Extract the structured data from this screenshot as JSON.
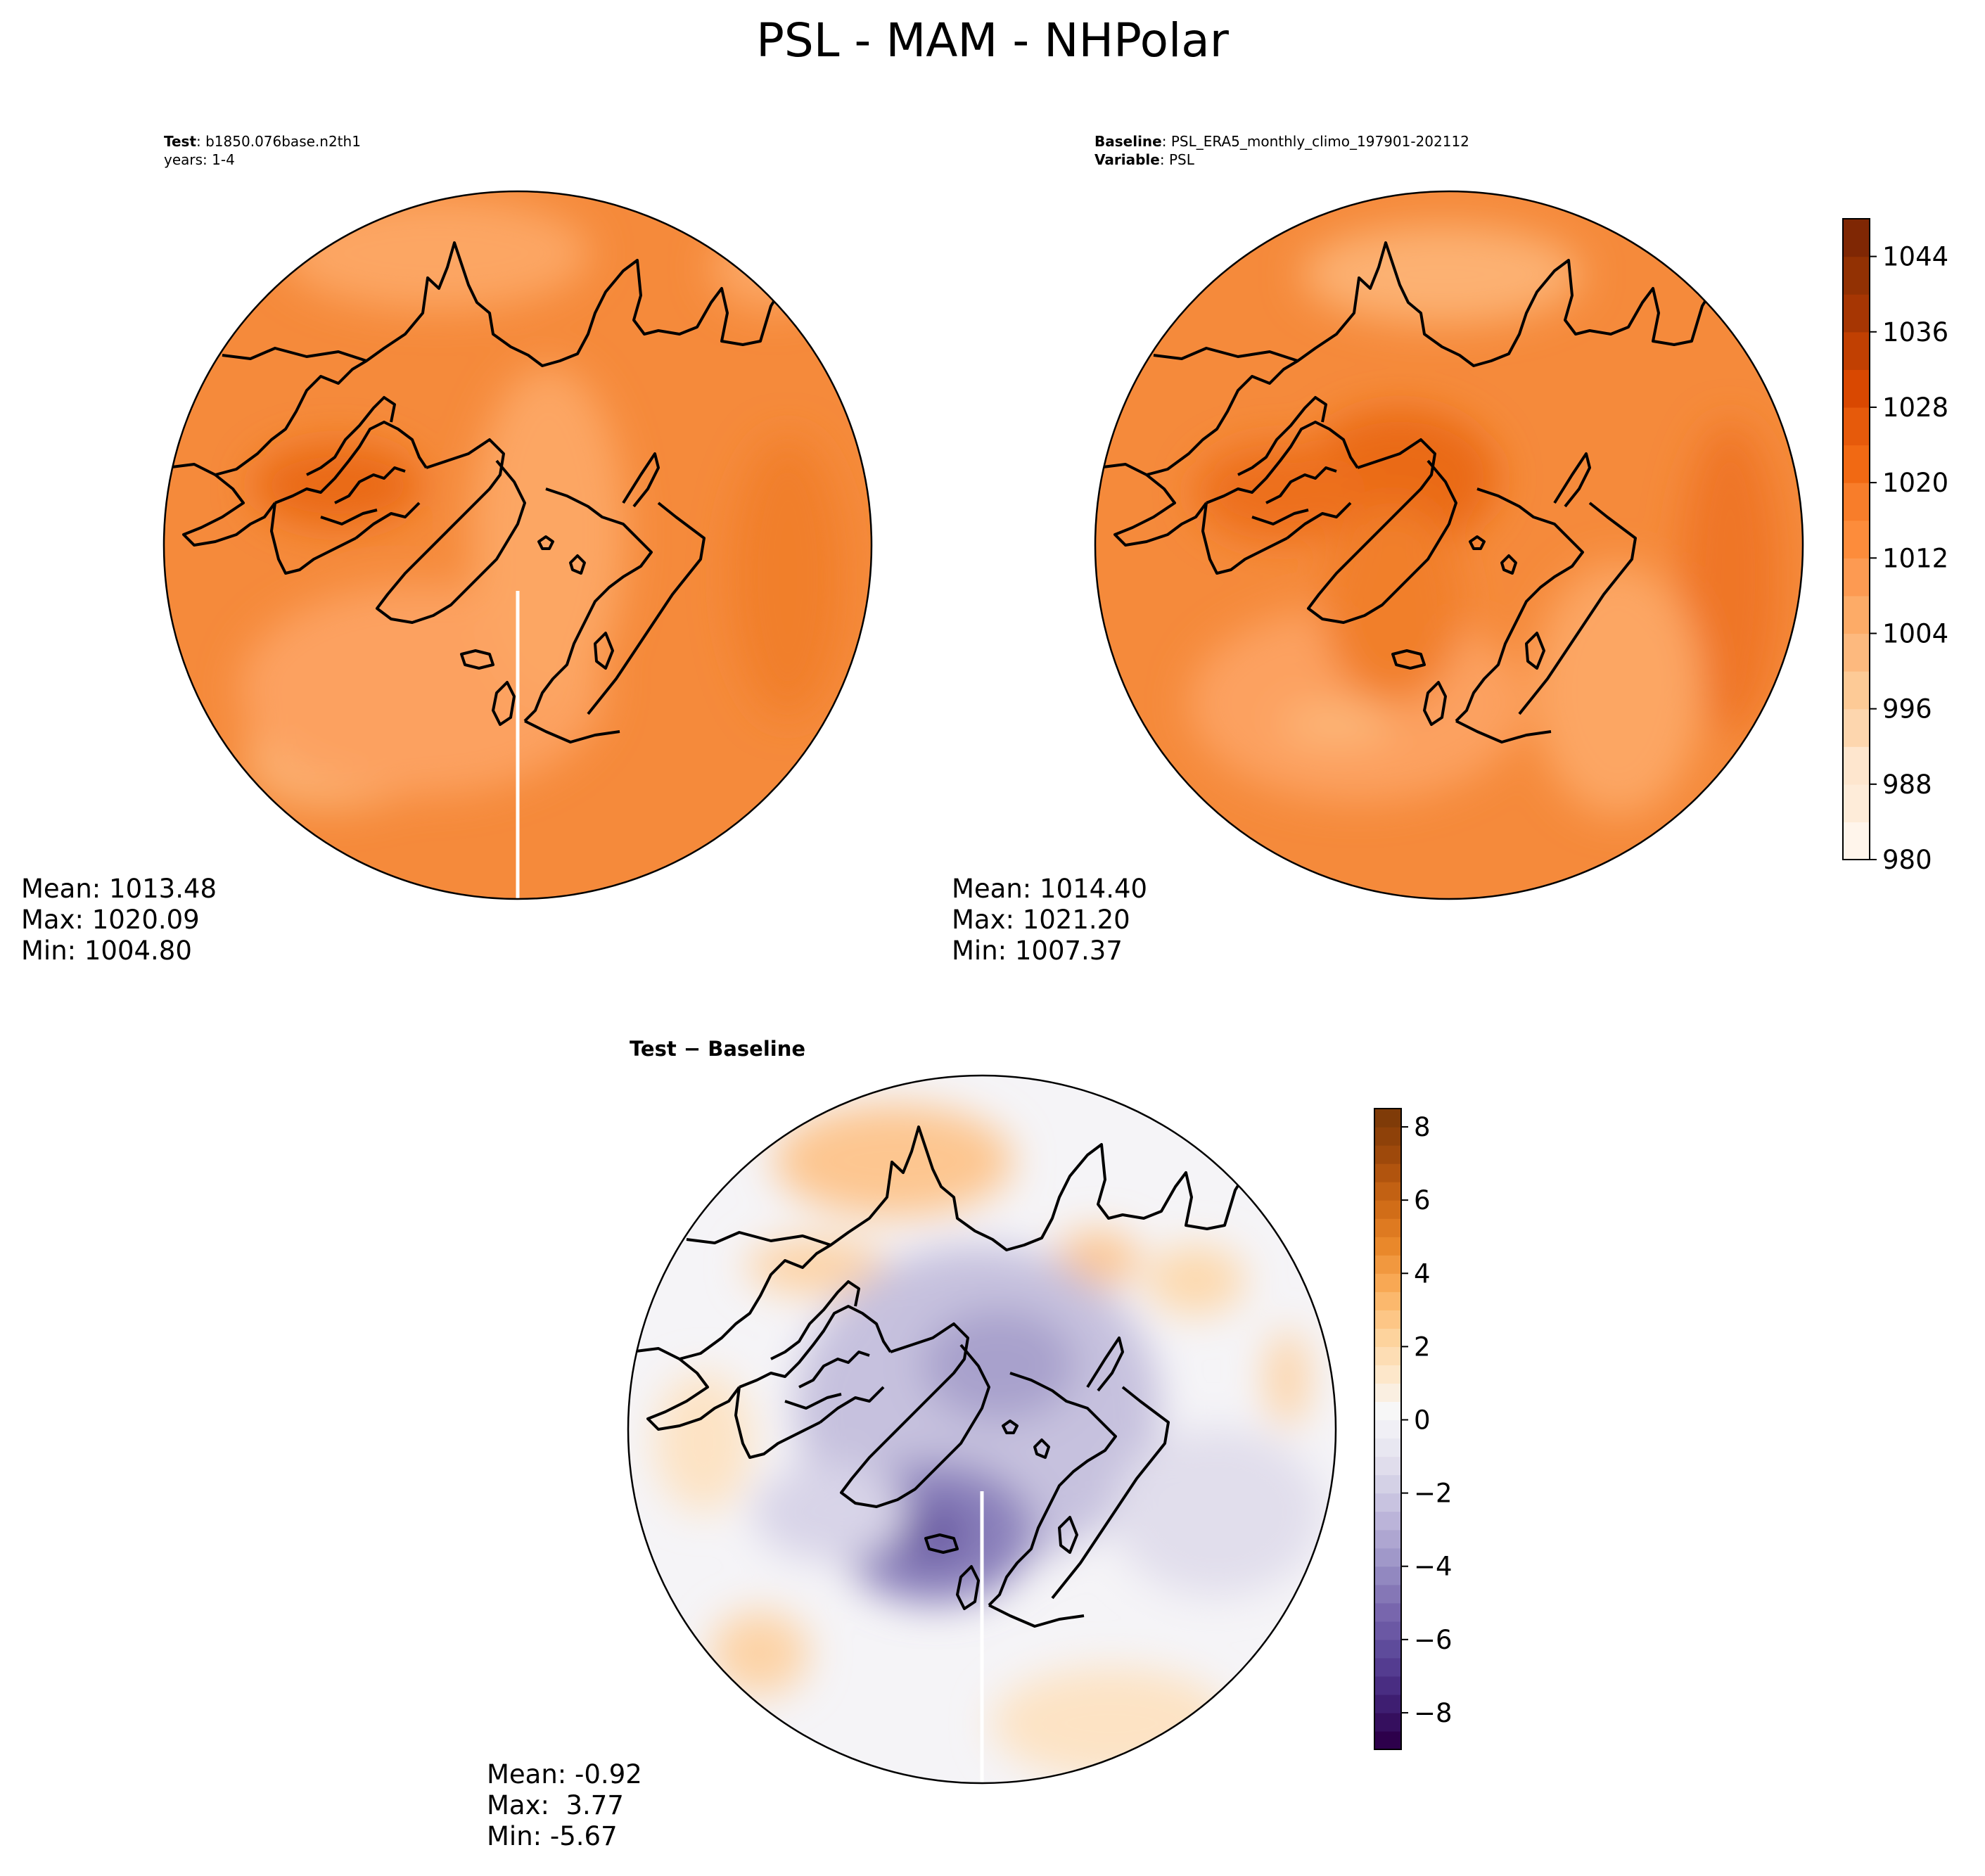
{
  "title": "PSL - MAM - NHPolar",
  "panels": {
    "test": {
      "label_bold": "Test",
      "label_value": ": b1850.076base.n2th1",
      "line2": "years: 1-4",
      "stats": {
        "mean": "Mean: 1013.48",
        "max": "Max: 1020.09",
        "min": "Min: 1004.80"
      }
    },
    "baseline": {
      "label_bold": "Baseline",
      "label_value": ": PSL_ERA5_monthly_climo_197901-202112",
      "line2_bold": "Variable",
      "line2_value": ": PSL",
      "stats": {
        "mean": "Mean: 1014.40",
        "max": "Max: 1021.20",
        "min": "Min: 1007.37"
      }
    },
    "diff": {
      "title": "Test − Baseline",
      "stats": {
        "mean": "Mean: -0.92",
        "max": "Max:  3.77",
        "min": "Min: -5.67"
      }
    }
  },
  "chart_data": [
    {
      "type": "heatmap",
      "name": "Test",
      "projection": "north-polar-stereographic",
      "variable": "PSL",
      "colormap": "Oranges",
      "stats": {
        "mean": 1013.48,
        "max": 1020.09,
        "min": 1004.8
      }
    },
    {
      "type": "heatmap",
      "name": "Baseline",
      "projection": "north-polar-stereographic",
      "variable": "PSL",
      "colormap": "Oranges",
      "stats": {
        "mean": 1014.4,
        "max": 1021.2,
        "min": 1007.37
      },
      "colorbar": {
        "ticks": [
          "1044",
          "1036",
          "1028",
          "1020",
          "1012",
          "1004",
          "996",
          "988",
          "980"
        ],
        "range": [
          980,
          1048
        ],
        "levels": 17
      }
    },
    {
      "type": "heatmap",
      "name": "Test − Baseline",
      "projection": "north-polar-stereographic",
      "colormap": "PuOr_r",
      "stats": {
        "mean": -0.92,
        "max": 3.77,
        "min": -5.67
      },
      "colorbar": {
        "ticks": [
          "8",
          "6",
          "4",
          "2",
          "0",
          "−2",
          "−4",
          "−6",
          "−8"
        ],
        "range": [
          -9,
          8.5
        ],
        "levels": 35
      }
    }
  ],
  "colors": {
    "oranges": [
      "#fff5eb",
      "#feecd9",
      "#fee6ce",
      "#fdd6ae",
      "#fdca96",
      "#fdb97e",
      "#fdab67",
      "#fd9a52",
      "#fd8c3b",
      "#f87d2a",
      "#f16913",
      "#e65a0b",
      "#d94801",
      "#c14002",
      "#a63603",
      "#923103",
      "#7f2704"
    ],
    "diverging_neg": [
      "#2d004b",
      "#3a1a6c",
      "#4e3389",
      "#5f4c9c",
      "#7563ab",
      "#8b80bb",
      "#a39bcb",
      "#bab3d8",
      "#d0cce4",
      "#e3e1ee",
      "#f0eff5"
    ],
    "diverging_pos": [
      "#f7f7f7",
      "#fde9cf",
      "#fdd8a7",
      "#fdc27e",
      "#f8a651",
      "#ea8a2c",
      "#d6711a",
      "#bb5b10",
      "#9a460a",
      "#7f3b08"
    ]
  }
}
